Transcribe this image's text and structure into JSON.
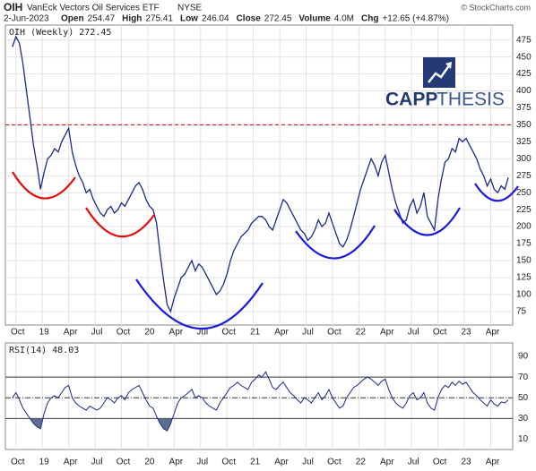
{
  "header": {
    "symbol": "OIH",
    "name": "VanEck Vectors Oil Services ETF",
    "exchange": "NYSE",
    "date": "2-Jun-2023",
    "fields": [
      {
        "label": "Open",
        "value": "254.47"
      },
      {
        "label": "High",
        "value": "275.41"
      },
      {
        "label": "Low",
        "value": "246.04"
      },
      {
        "label": "Close",
        "value": "272.45"
      },
      {
        "label": "Volume",
        "value": "4.0M"
      },
      {
        "label": "Chg",
        "value": "+12.65 (+4.87%)"
      }
    ],
    "credit": "© StockCharts.com"
  },
  "logo": {
    "bold": "CAPP",
    "light": "THESIS"
  },
  "chart_data": [
    {
      "type": "line",
      "legend": "OIH (Weekly) 272.45",
      "color": "#1c2a8a",
      "x": [
        8.6,
        9,
        9.4,
        9.8,
        10.2,
        10.6,
        11,
        11.4,
        11.8,
        12.2,
        12.6,
        13,
        13.4,
        13.8,
        14.2,
        14.6,
        15,
        15.4,
        15.8,
        16.2,
        16.6,
        17,
        17.4,
        17.8,
        18.2,
        18.6,
        19,
        19.4,
        19.8,
        20.2,
        20.6,
        21,
        21.4,
        21.8,
        22.2,
        22.6,
        23,
        23.4,
        23.8,
        24.2,
        24.6,
        25,
        25.4,
        25.8,
        26.2,
        26.6,
        27,
        27.4,
        27.8,
        28.2,
        28.6,
        29,
        29.4,
        29.8,
        30.2,
        30.6,
        31,
        31.4,
        31.8,
        32.2,
        32.6,
        33,
        33.4,
        33.8,
        34.2,
        34.6,
        35,
        35.4,
        35.8,
        36.2,
        36.6,
        37,
        37.4,
        37.8,
        38.2,
        38.6,
        39,
        39.4,
        39.8,
        40.2,
        40.6,
        41,
        41.4,
        41.8,
        42.2,
        42.6,
        43,
        43.4,
        43.8,
        44.2,
        44.6,
        45,
        45.4,
        45.8,
        46.2,
        46.6,
        47,
        47.4,
        47.8,
        48.2,
        48.6,
        49,
        49.4,
        49.8,
        50.2,
        50.6,
        51,
        51.4,
        51.8,
        52.2,
        52.6,
        53,
        53.4,
        53.8,
        54.2,
        54.6,
        55,
        55.4,
        55.8,
        56.2,
        56.6,
        57,
        57.4,
        57.8,
        58.2,
        58.6,
        59,
        59.4,
        59.8,
        60.2,
        60.6,
        61,
        61.4,
        61.8,
        62.2,
        62.6,
        63,
        63.4,
        63.8,
        64.2,
        64.6,
        65
      ],
      "values": [
        465,
        480,
        470,
        440,
        400,
        360,
        320,
        290,
        255,
        280,
        300,
        305,
        315,
        310,
        325,
        335,
        345,
        310,
        290,
        275,
        265,
        250,
        255,
        240,
        230,
        220,
        215,
        225,
        230,
        220,
        225,
        235,
        230,
        240,
        250,
        260,
        265,
        255,
        240,
        230,
        225,
        205,
        160,
        120,
        85,
        75,
        95,
        110,
        125,
        130,
        140,
        150,
        135,
        145,
        140,
        130,
        120,
        110,
        100,
        105,
        115,
        130,
        150,
        165,
        175,
        185,
        190,
        195,
        205,
        210,
        215,
        215,
        210,
        200,
        195,
        210,
        225,
        240,
        235,
        225,
        215,
        205,
        195,
        190,
        180,
        185,
        195,
        210,
        200,
        205,
        220,
        205,
        190,
        175,
        170,
        180,
        195,
        215,
        235,
        255,
        270,
        285,
        300,
        290,
        275,
        295,
        305,
        280,
        255,
        235,
        220,
        205,
        210,
        230,
        240,
        220,
        230,
        250,
        215,
        205,
        195,
        240,
        270,
        295,
        300,
        315,
        310,
        330,
        325,
        330,
        320,
        310,
        300,
        285,
        275,
        260,
        270,
        255,
        250,
        260,
        255,
        272.45
      ],
      "xlim": [
        7.8,
        65.5
      ],
      "xticks": [
        {
          "value": 9,
          "label": "Oct"
        },
        {
          "value": 12,
          "label": "19"
        },
        {
          "value": 15,
          "label": "Apr"
        },
        {
          "value": 18,
          "label": "Jul"
        },
        {
          "value": 21,
          "label": "Oct"
        },
        {
          "value": 24,
          "label": "20"
        },
        {
          "value": 27,
          "label": "Apr"
        },
        {
          "value": 30,
          "label": "Jul"
        },
        {
          "value": 33,
          "label": "Oct"
        },
        {
          "value": 36,
          "label": "21"
        },
        {
          "value": 39,
          "label": "Apr"
        },
        {
          "value": 42,
          "label": "Jul"
        },
        {
          "value": 45,
          "label": "Oct"
        },
        {
          "value": 48,
          "label": "22"
        },
        {
          "value": 51,
          "label": "Apr"
        },
        {
          "value": 54,
          "label": "Jul"
        },
        {
          "value": 57,
          "label": "Oct"
        },
        {
          "value": 60,
          "label": "23"
        },
        {
          "value": 63,
          "label": "Apr"
        }
      ],
      "ylim": [
        55,
        497
      ],
      "yticks": [
        75,
        100,
        125,
        150,
        175,
        200,
        225,
        250,
        275,
        300,
        325,
        350,
        375,
        400,
        425,
        450,
        475
      ],
      "hline": {
        "value": 350,
        "color": "#cc0000"
      },
      "grid": true
    },
    {
      "type": "rsi",
      "legend": "RSI(14) 48.03",
      "color": "#1c2a8a",
      "fill": "#5d6f8f",
      "values": [
        50,
        55,
        48,
        40,
        35,
        30,
        25,
        22,
        20,
        35,
        45,
        50,
        52,
        50,
        55,
        60,
        62,
        50,
        45,
        42,
        40,
        38,
        42,
        40,
        38,
        40,
        45,
        50,
        48,
        45,
        50,
        52,
        48,
        55,
        58,
        60,
        62,
        55,
        48,
        42,
        40,
        32,
        25,
        20,
        18,
        25,
        35,
        45,
        50,
        52,
        55,
        58,
        50,
        52,
        50,
        45,
        42,
        40,
        38,
        45,
        50,
        55,
        60,
        62,
        65,
        62,
        60,
        58,
        65,
        68,
        72,
        70,
        75,
        68,
        60,
        58,
        62,
        65,
        60,
        55,
        52,
        48,
        45,
        50,
        48,
        45,
        50,
        55,
        48,
        52,
        58,
        50,
        45,
        40,
        42,
        50,
        55,
        60,
        62,
        65,
        68,
        70,
        68,
        65,
        62,
        66,
        68,
        58,
        50,
        45,
        42,
        40,
        45,
        52,
        55,
        48,
        50,
        55,
        45,
        40,
        38,
        50,
        58,
        62,
        60,
        65,
        62,
        66,
        63,
        65,
        60,
        55,
        52,
        48,
        45,
        42,
        48,
        44,
        42,
        46,
        45,
        48.03
      ],
      "ylim": [
        0,
        103
      ],
      "yticks": [
        10,
        30,
        50,
        70,
        90
      ],
      "levels": [
        70,
        50,
        30
      ],
      "shade_below": 30
    }
  ]
}
